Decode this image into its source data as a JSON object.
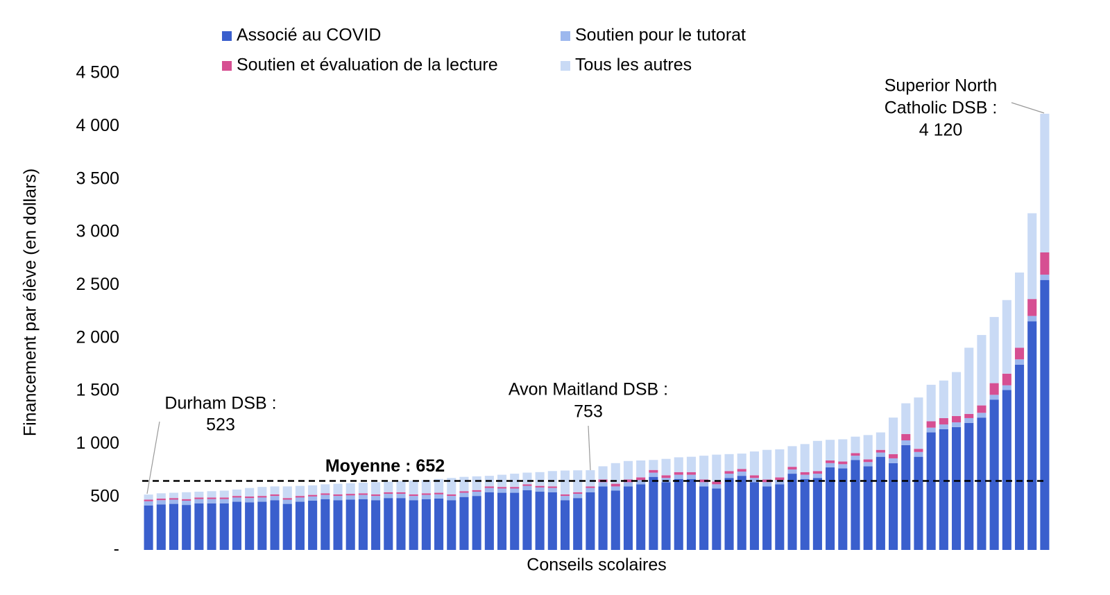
{
  "chart_data": {
    "type": "stacked_bar",
    "y_label": "Financement par élève (en dollars)",
    "x_label": "Conseils scolaires",
    "categories": [
      null,
      null,
      null,
      null,
      null,
      null,
      null,
      null,
      null,
      null,
      null,
      null,
      null,
      null,
      null,
      null,
      null,
      null,
      null,
      null,
      null,
      null,
      null,
      null,
      null,
      null,
      null,
      null,
      null,
      null,
      null,
      null,
      null,
      null,
      null,
      null,
      null,
      null,
      null,
      null,
      null,
      null,
      null,
      null,
      null,
      null,
      null,
      null,
      null,
      null,
      null,
      null,
      null,
      null,
      null,
      null,
      null,
      null,
      null,
      null,
      null,
      null,
      null,
      null,
      null,
      null,
      null,
      null,
      null,
      null,
      null,
      null
    ],
    "series": [
      {
        "name": "Associé au COVID",
        "color": "#3a5fcd",
        "values": [
          420,
          430,
          435,
          425,
          440,
          440,
          440,
          455,
          450,
          455,
          470,
          435,
          455,
          465,
          480,
          470,
          475,
          480,
          470,
          490,
          490,
          470,
          480,
          485,
          470,
          500,
          510,
          545,
          540,
          540,
          565,
          550,
          545,
          470,
          490,
          545,
          600,
          560,
          600,
          620,
          690,
          640,
          670,
          670,
          600,
          580,
          680,
          700,
          640,
          600,
          620,
          720,
          670,
          680,
          780,
          770,
          850,
          790,
          880,
          820,
          990,
          880,
          1110,
          1140,
          1160,
          1200,
          1250,
          1420,
          1510,
          1750,
          2160,
          2550
        ]
      },
      {
        "name": "Soutien pour le tutorat",
        "color": "#9db8ee",
        "values": [
          40,
          40,
          40,
          40,
          40,
          40,
          40,
          40,
          40,
          40,
          40,
          40,
          40,
          40,
          40,
          40,
          40,
          40,
          40,
          40,
          40,
          40,
          40,
          40,
          40,
          40,
          40,
          40,
          40,
          40,
          40,
          40,
          40,
          40,
          40,
          40,
          40,
          40,
          40,
          40,
          40,
          40,
          40,
          40,
          40,
          40,
          40,
          40,
          40,
          40,
          40,
          40,
          40,
          40,
          40,
          40,
          40,
          40,
          40,
          45,
          45,
          45,
          45,
          45,
          45,
          45,
          45,
          45,
          45,
          50,
          50,
          50
        ]
      },
      {
        "name": "Soutien et évaluation de la lecture",
        "color": "#d64f92",
        "values": [
          15,
          15,
          15,
          15,
          15,
          15,
          15,
          15,
          15,
          15,
          15,
          15,
          15,
          15,
          15,
          15,
          15,
          15,
          15,
          15,
          15,
          15,
          15,
          15,
          15,
          15,
          15,
          15,
          15,
          15,
          15,
          15,
          15,
          15,
          15,
          15,
          25,
          25,
          25,
          25,
          25,
          25,
          25,
          25,
          25,
          25,
          25,
          25,
          25,
          25,
          25,
          25,
          25,
          25,
          25,
          25,
          25,
          25,
          25,
          40,
          60,
          30,
          60,
          60,
          60,
          40,
          70,
          110,
          110,
          110,
          160,
          210
        ]
      },
      {
        "name": "Tous les autres",
        "color": "#c9daf5",
        "values": [
          48,
          50,
          50,
          65,
          55,
          60,
          65,
          60,
          80,
          85,
          75,
          110,
          95,
          90,
          85,
          100,
          100,
          100,
          115,
          100,
          105,
          130,
          125,
          130,
          155,
          135,
          130,
          100,
          115,
          125,
          110,
          130,
          145,
          225,
          207,
          153,
          125,
          195,
          175,
          160,
          95,
          155,
          140,
          145,
          225,
          255,
          160,
          145,
          225,
          280,
          265,
          195,
          265,
          285,
          195,
          210,
          155,
          230,
          165,
          345,
          290,
          485,
          345,
          355,
          415,
          625,
          665,
          625,
          695,
          710,
          810,
          1310
        ]
      }
    ],
    "ylim": [
      0,
      4500
    ],
    "yticks": [
      {
        "value": 0,
        "label": "-"
      },
      500,
      {
        "value": 1000,
        "label": "1 000"
      },
      {
        "value": 1500,
        "label": "1 500"
      },
      {
        "value": 2000,
        "label": "2 000"
      },
      {
        "value": 2500,
        "label": "2 500"
      },
      {
        "value": 3000,
        "label": "3 000"
      },
      {
        "value": 3500,
        "label": "3 500"
      },
      {
        "value": 4000,
        "label": "4 000"
      },
      {
        "value": 4500,
        "label": "4 500"
      }
    ],
    "average": {
      "label": "Moyenne : 652",
      "value": 652
    },
    "annotations": [
      {
        "lines": [
          "Durham DSB :",
          "523"
        ]
      },
      {
        "lines": [
          "Avon Maitland DSB :",
          "753"
        ]
      },
      {
        "lines": [
          "Superior North",
          "Catholic DSB :",
          "4 120"
        ]
      }
    ]
  }
}
